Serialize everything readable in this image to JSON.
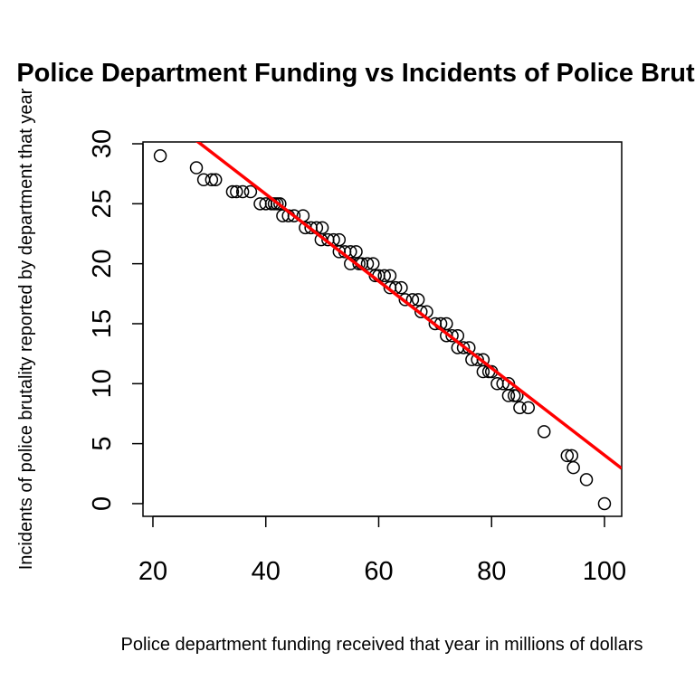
{
  "chart_data": {
    "type": "scatter",
    "title": "Police Department Funding vs Incidents of Police Brutality",
    "x_label": "Police department funding received that year in millions of dollars",
    "y_label": "Incidents of police brutality reported by department that year",
    "x": [
      21.3,
      27.7,
      29,
      30.4,
      31.1,
      34.1,
      34.8,
      35.9,
      37.3,
      39,
      40,
      41,
      41.5,
      42,
      42.5,
      43,
      44,
      45,
      46.6,
      47,
      48,
      49,
      50,
      49.8,
      51,
      52,
      53,
      53,
      54,
      55,
      56,
      55,
      56.5,
      57,
      58,
      59,
      59.4,
      60,
      61,
      62,
      62,
      63,
      64,
      64.7,
      66,
      67,
      67.5,
      68.5,
      70,
      71,
      72,
      72,
      73,
      74,
      74,
      75,
      76,
      76.5,
      77.5,
      78.5,
      78.5,
      79.5,
      80,
      81,
      82,
      83,
      83,
      84,
      84.5,
      85,
      86.5,
      89.3,
      93.4,
      94.2,
      94.5,
      96.8,
      100
    ],
    "values": [
      29,
      28,
      27,
      27,
      27,
      26,
      26,
      26,
      26,
      25,
      25,
      25,
      25,
      25,
      25,
      24,
      24,
      24,
      24,
      23,
      23,
      23,
      23,
      22,
      22,
      22,
      22,
      21,
      21,
      21,
      21,
      20,
      20,
      20,
      20,
      20,
      19,
      19,
      19,
      19,
      18,
      18,
      18,
      17,
      17,
      17,
      16,
      16,
      15,
      15,
      15,
      14,
      14,
      14,
      13,
      13,
      13,
      12,
      12,
      12,
      11,
      11,
      11,
      10,
      10,
      10,
      9,
      9,
      9,
      8,
      8,
      6,
      4,
      4,
      3,
      2,
      0
    ],
    "color": "#000000",
    "fit_line": {
      "intercept": 40.31,
      "slope": -0.3627,
      "color": "#ff0000"
    },
    "xlim": [
      18.24,
      103.05
    ],
    "ylim": [
      -1.06,
      30.15
    ],
    "xticks": [
      20,
      40,
      60,
      80,
      100
    ],
    "yticks": [
      0,
      5,
      10,
      15,
      20,
      25,
      30
    ]
  }
}
